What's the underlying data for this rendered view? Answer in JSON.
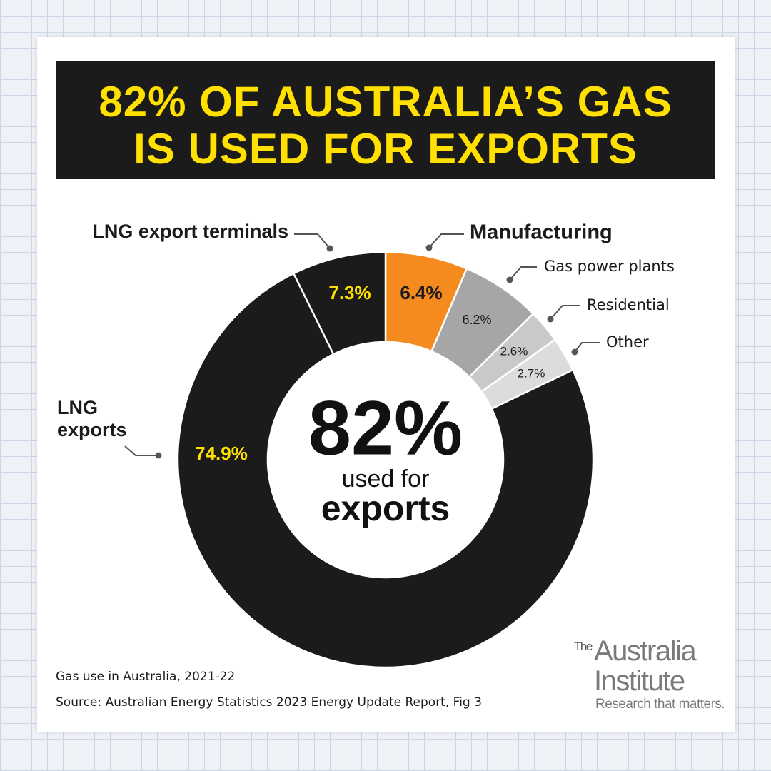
{
  "chart_data": {
    "type": "donut",
    "title": [
      "82% OF AUSTRALIA’S GAS",
      "IS USED FOR EXPORTS"
    ],
    "categories": [
      "Manufacturing",
      "Gas power plants",
      "Residential",
      "Other",
      "LNG exports",
      "LNG export terminals"
    ],
    "values": [
      6.4,
      6.2,
      2.6,
      2.7,
      74.9,
      7.3
    ],
    "value_labels": [
      "6.4%",
      "6.2%",
      "2.6%",
      "2.7%",
      "74.9%",
      "7.3%"
    ],
    "colors": [
      "#f58a1f",
      "#a6a6a6",
      "#c9c9c9",
      "#dcdcdc",
      "#1b1b1b",
      "#1b1b1b"
    ],
    "center_text": [
      "82%",
      "used for",
      "exports"
    ],
    "notes": [
      "Gas use in Australia, 2021-22",
      "Source: Australian Energy Statistics 2023 Energy Update Report, Fig 3"
    ],
    "logo": [
      "The",
      "Australia",
      "Institute",
      "Research that matters."
    ]
  }
}
